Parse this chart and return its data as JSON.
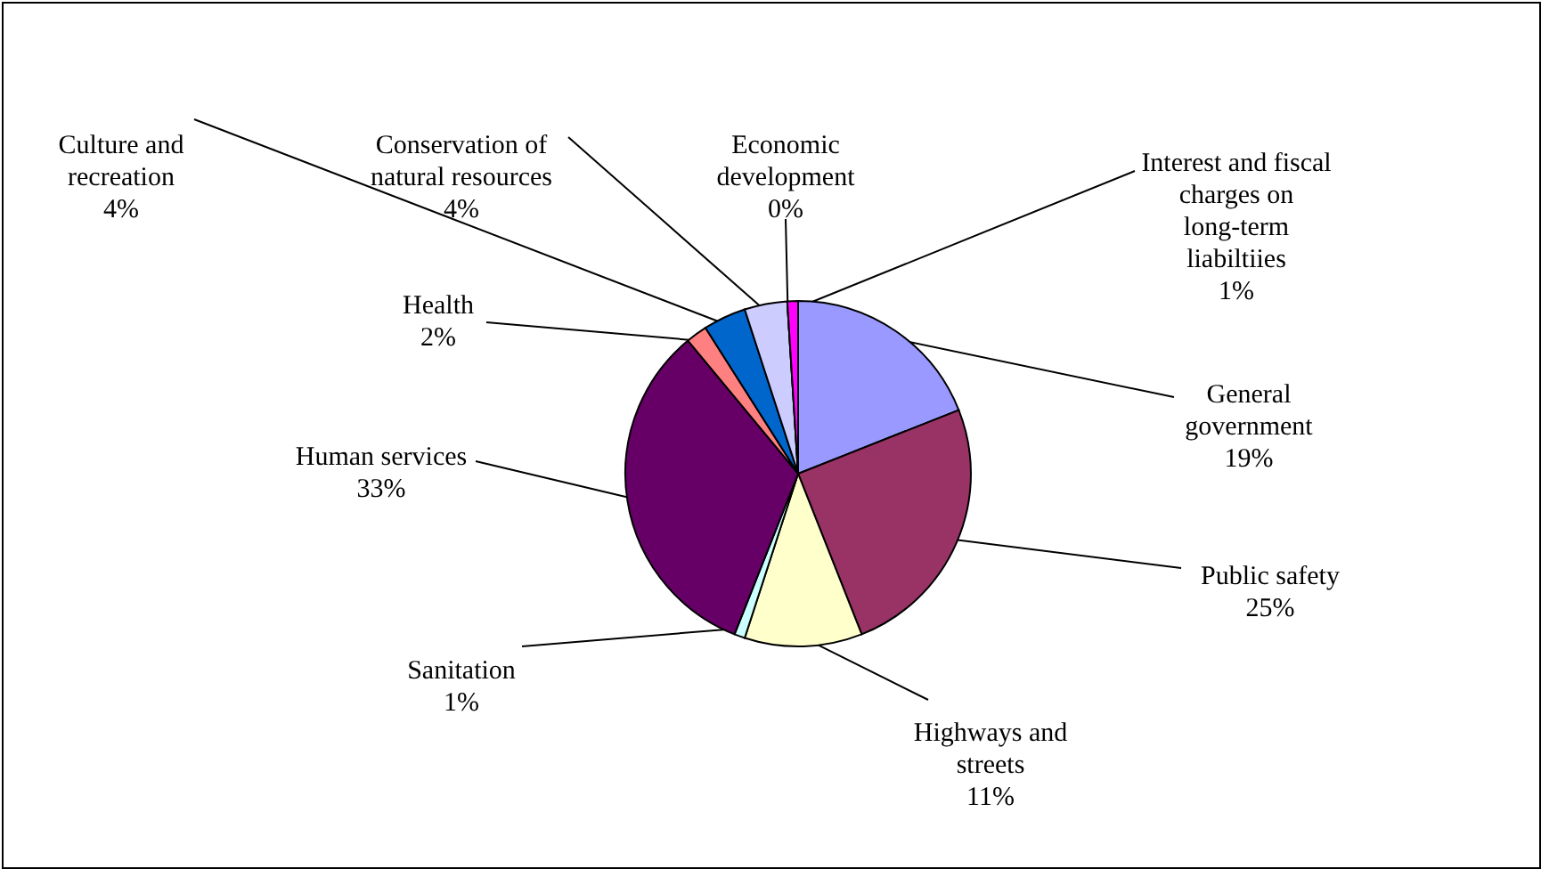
{
  "chart_data": {
    "type": "pie",
    "categories": [
      "General government",
      "Public safety",
      "Highways and streets",
      "Sanitation",
      "Human services",
      "Health",
      "Culture and recreation",
      "Conservation of natural resources",
      "Economic development",
      "Interest and fiscal charges on long-term liabiltiies"
    ],
    "values": [
      19,
      25,
      11,
      1,
      33,
      2,
      4,
      4,
      0,
      1
    ],
    "value_labels": [
      "19%",
      "25%",
      "11%",
      "1%",
      "33%",
      "2%",
      "4%",
      "4%",
      "0%",
      "1%"
    ],
    "colors": [
      "#9999ff",
      "#993366",
      "#ffffcc",
      "#ccffff",
      "#660066",
      "#ff8080",
      "#0066cc",
      "#ccccff",
      "#ffff99",
      "#ff00ff"
    ]
  }
}
